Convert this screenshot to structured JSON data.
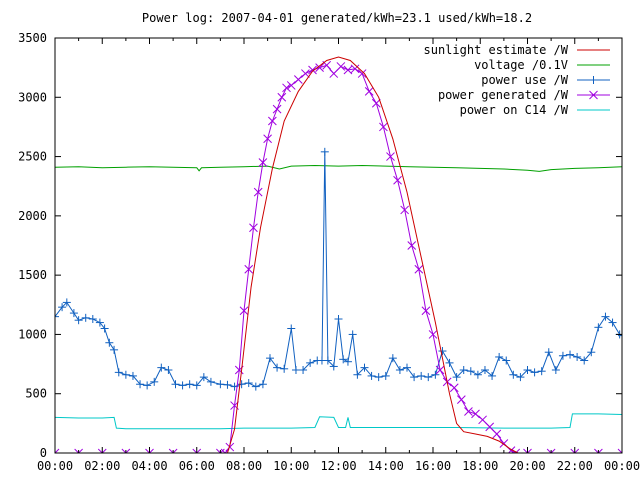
{
  "chart_data": {
    "type": "line",
    "title": "Power log: 2007-04-01 generated/kWh=23.1 used/kWh=18.2",
    "xlabel": "",
    "ylabel": "",
    "xlim": [
      0,
      24
    ],
    "ylim": [
      0,
      3500
    ],
    "grid": false,
    "legend_position": "top-right",
    "x_tick_labels": [
      "00:00",
      "02:00",
      "04:00",
      "06:00",
      "08:00",
      "10:00",
      "12:00",
      "14:00",
      "16:00",
      "18:00",
      "20:00",
      "22:00",
      "00:00"
    ],
    "y_ticks": [
      0,
      500,
      1000,
      1500,
      2000,
      2500,
      3000,
      3500
    ],
    "series": [
      {
        "name": "sunlight estimate /W",
        "color": "#cc0000",
        "marker": "none",
        "points": [
          [
            0,
            0
          ],
          [
            7.3,
            0
          ],
          [
            7.6,
            200
          ],
          [
            7.9,
            700
          ],
          [
            8.3,
            1400
          ],
          [
            8.7,
            1900
          ],
          [
            9.2,
            2400
          ],
          [
            9.7,
            2800
          ],
          [
            10.3,
            3050
          ],
          [
            10.9,
            3220
          ],
          [
            11.5,
            3310
          ],
          [
            12.0,
            3340
          ],
          [
            12.5,
            3310
          ],
          [
            13.1,
            3200
          ],
          [
            13.7,
            3000
          ],
          [
            14.3,
            2650
          ],
          [
            14.9,
            2200
          ],
          [
            15.5,
            1650
          ],
          [
            16.1,
            1100
          ],
          [
            16.7,
            500
          ],
          [
            17.0,
            250
          ],
          [
            17.3,
            180
          ],
          [
            17.8,
            160
          ],
          [
            18.3,
            140
          ],
          [
            18.8,
            100
          ],
          [
            19.3,
            30
          ],
          [
            19.6,
            0
          ],
          [
            24,
            0
          ]
        ]
      },
      {
        "name": "voltage /0.1V",
        "color": "#00a000",
        "marker": "none",
        "points": [
          [
            0,
            2410
          ],
          [
            1.0,
            2415
          ],
          [
            2.0,
            2405
          ],
          [
            3.0,
            2410
          ],
          [
            4.0,
            2415
          ],
          [
            5.0,
            2410
          ],
          [
            6.0,
            2405
          ],
          [
            6.1,
            2380
          ],
          [
            6.2,
            2405
          ],
          [
            7.0,
            2410
          ],
          [
            8.0,
            2415
          ],
          [
            9.0,
            2420
          ],
          [
            9.5,
            2395
          ],
          [
            10.0,
            2420
          ],
          [
            11.0,
            2425
          ],
          [
            12.0,
            2420
          ],
          [
            13.0,
            2425
          ],
          [
            14.0,
            2420
          ],
          [
            15.0,
            2415
          ],
          [
            16.0,
            2410
          ],
          [
            17.0,
            2405
          ],
          [
            18.0,
            2400
          ],
          [
            19.0,
            2395
          ],
          [
            20.0,
            2385
          ],
          [
            20.5,
            2375
          ],
          [
            21.0,
            2390
          ],
          [
            22.0,
            2400
          ],
          [
            23.0,
            2405
          ],
          [
            24,
            2415
          ]
        ]
      },
      {
        "name": "power use /W",
        "color": "#1060c0",
        "marker": "plus",
        "points": [
          [
            0,
            1150
          ],
          [
            0.3,
            1230
          ],
          [
            0.5,
            1270
          ],
          [
            0.8,
            1180
          ],
          [
            1.0,
            1120
          ],
          [
            1.3,
            1140
          ],
          [
            1.6,
            1130
          ],
          [
            1.9,
            1100
          ],
          [
            2.1,
            1050
          ],
          [
            2.3,
            930
          ],
          [
            2.5,
            870
          ],
          [
            2.7,
            680
          ],
          [
            3.0,
            660
          ],
          [
            3.3,
            650
          ],
          [
            3.6,
            580
          ],
          [
            3.9,
            570
          ],
          [
            4.2,
            600
          ],
          [
            4.5,
            720
          ],
          [
            4.8,
            700
          ],
          [
            5.1,
            580
          ],
          [
            5.4,
            570
          ],
          [
            5.7,
            580
          ],
          [
            6.0,
            570
          ],
          [
            6.3,
            640
          ],
          [
            6.6,
            600
          ],
          [
            7.0,
            580
          ],
          [
            7.3,
            575
          ],
          [
            7.6,
            560
          ],
          [
            7.9,
            580
          ],
          [
            8.2,
            590
          ],
          [
            8.5,
            560
          ],
          [
            8.8,
            580
          ],
          [
            9.1,
            800
          ],
          [
            9.4,
            720
          ],
          [
            9.7,
            710
          ],
          [
            10.0,
            1050
          ],
          [
            10.2,
            700
          ],
          [
            10.5,
            700
          ],
          [
            10.8,
            760
          ],
          [
            11.1,
            780
          ],
          [
            11.3,
            780
          ],
          [
            11.42,
            2540
          ],
          [
            11.55,
            780
          ],
          [
            11.8,
            730
          ],
          [
            12.0,
            1130
          ],
          [
            12.2,
            790
          ],
          [
            12.4,
            770
          ],
          [
            12.6,
            1000
          ],
          [
            12.8,
            660
          ],
          [
            13.1,
            720
          ],
          [
            13.4,
            650
          ],
          [
            13.7,
            640
          ],
          [
            14.0,
            650
          ],
          [
            14.3,
            800
          ],
          [
            14.6,
            700
          ],
          [
            14.9,
            720
          ],
          [
            15.2,
            640
          ],
          [
            15.5,
            650
          ],
          [
            15.8,
            640
          ],
          [
            16.1,
            660
          ],
          [
            16.4,
            860
          ],
          [
            16.7,
            760
          ],
          [
            17.0,
            640
          ],
          [
            17.3,
            700
          ],
          [
            17.6,
            690
          ],
          [
            17.9,
            660
          ],
          [
            18.2,
            700
          ],
          [
            18.5,
            650
          ],
          [
            18.8,
            810
          ],
          [
            19.1,
            780
          ],
          [
            19.4,
            660
          ],
          [
            19.7,
            640
          ],
          [
            20.0,
            700
          ],
          [
            20.3,
            680
          ],
          [
            20.6,
            690
          ],
          [
            20.9,
            850
          ],
          [
            21.2,
            700
          ],
          [
            21.5,
            820
          ],
          [
            21.8,
            830
          ],
          [
            22.1,
            810
          ],
          [
            22.4,
            780
          ],
          [
            22.7,
            850
          ],
          [
            23.0,
            1060
          ],
          [
            23.3,
            1150
          ],
          [
            23.6,
            1100
          ],
          [
            23.9,
            1000
          ],
          [
            24,
            990
          ]
        ]
      },
      {
        "name": "power generated /W",
        "color": "#a000e0",
        "marker": "x",
        "points": [
          [
            0,
            0
          ],
          [
            1.0,
            0
          ],
          [
            2.0,
            0
          ],
          [
            3.0,
            0
          ],
          [
            4.0,
            0
          ],
          [
            5.0,
            0
          ],
          [
            6.0,
            0
          ],
          [
            7.0,
            0
          ],
          [
            7.2,
            0
          ],
          [
            7.4,
            50
          ],
          [
            7.6,
            400
          ],
          [
            7.8,
            700
          ],
          [
            8.0,
            1200
          ],
          [
            8.2,
            1550
          ],
          [
            8.4,
            1900
          ],
          [
            8.6,
            2200
          ],
          [
            8.8,
            2450
          ],
          [
            9.0,
            2650
          ],
          [
            9.2,
            2800
          ],
          [
            9.4,
            2900
          ],
          [
            9.6,
            3000
          ],
          [
            9.8,
            3080
          ],
          [
            10.0,
            3100
          ],
          [
            10.3,
            3150
          ],
          [
            10.6,
            3200
          ],
          [
            10.9,
            3230
          ],
          [
            11.2,
            3250
          ],
          [
            11.5,
            3270
          ],
          [
            11.8,
            3200
          ],
          [
            12.1,
            3260
          ],
          [
            12.4,
            3230
          ],
          [
            12.7,
            3240
          ],
          [
            13.0,
            3200
          ],
          [
            13.3,
            3050
          ],
          [
            13.6,
            2950
          ],
          [
            13.9,
            2750
          ],
          [
            14.2,
            2500
          ],
          [
            14.5,
            2300
          ],
          [
            14.8,
            2050
          ],
          [
            15.1,
            1750
          ],
          [
            15.4,
            1550
          ],
          [
            15.7,
            1200
          ],
          [
            16.0,
            1000
          ],
          [
            16.3,
            700
          ],
          [
            16.6,
            600
          ],
          [
            16.9,
            550
          ],
          [
            17.2,
            450
          ],
          [
            17.5,
            350
          ],
          [
            17.8,
            330
          ],
          [
            18.1,
            280
          ],
          [
            18.4,
            220
          ],
          [
            18.7,
            160
          ],
          [
            19.0,
            80
          ],
          [
            19.3,
            20
          ],
          [
            19.5,
            0
          ],
          [
            20,
            0
          ],
          [
            21,
            0
          ],
          [
            22,
            0
          ],
          [
            23,
            0
          ],
          [
            24,
            0
          ]
        ]
      },
      {
        "name": "power on C14 /W",
        "color": "#00c8c8",
        "marker": "none",
        "points": [
          [
            0,
            300
          ],
          [
            1.0,
            295
          ],
          [
            2.0,
            295
          ],
          [
            2.5,
            300
          ],
          [
            2.6,
            210
          ],
          [
            3.0,
            205
          ],
          [
            5.0,
            205
          ],
          [
            7.0,
            205
          ],
          [
            8.0,
            210
          ],
          [
            9.0,
            210
          ],
          [
            10.0,
            210
          ],
          [
            11.0,
            215
          ],
          [
            11.2,
            305
          ],
          [
            11.8,
            300
          ],
          [
            12.0,
            215
          ],
          [
            12.3,
            215
          ],
          [
            12.4,
            300
          ],
          [
            12.5,
            215
          ],
          [
            13.0,
            215
          ],
          [
            15.0,
            215
          ],
          [
            17.0,
            215
          ],
          [
            19.0,
            210
          ],
          [
            20.0,
            210
          ],
          [
            21.0,
            210
          ],
          [
            21.8,
            215
          ],
          [
            21.9,
            330
          ],
          [
            23.0,
            330
          ],
          [
            24,
            325
          ]
        ]
      }
    ]
  }
}
